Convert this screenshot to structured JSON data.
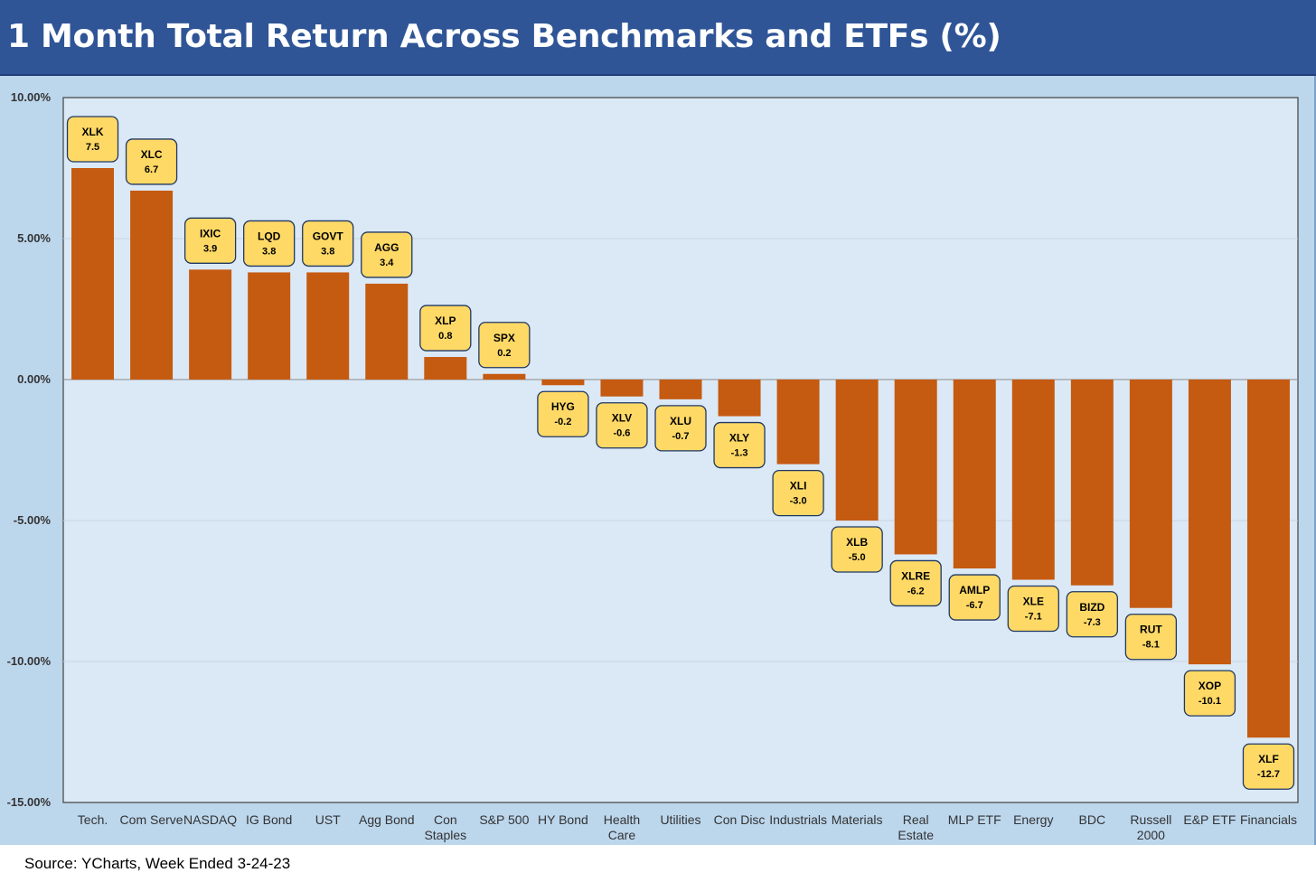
{
  "title": "1 Month Total Return Across Benchmarks and ETFs (%)",
  "source": "Source: YCharts, Week Ended 3-24-23",
  "colors": {
    "header_bg": "#2f5597",
    "panel_bg": "#bcd6ec",
    "plot_bg": "#dbe9f6",
    "bar": "#c55a11",
    "badge_fill": "#ffd966",
    "badge_border": "#1f3864",
    "grid": "#c8d4e0"
  },
  "chart_data": {
    "type": "bar",
    "title": "1 Month Total Return Across Benchmarks and ETFs (%)",
    "xlabel": "",
    "ylabel": "",
    "ylim": [
      -15,
      10
    ],
    "yticks": [
      10,
      5,
      0,
      -5,
      -10,
      -15
    ],
    "ytick_labels": [
      "10.00%",
      "5.00%",
      "0.00%",
      "-5.00%",
      "-10.00%",
      "-15.00%"
    ],
    "grid": true,
    "legend": "none",
    "categories": [
      "Tech.",
      "Com Serve",
      "NASDAQ",
      "IG Bond",
      "UST",
      "Agg Bond",
      "Con Staples",
      "S&P 500",
      "HY Bond",
      "Health Care",
      "Utilities",
      "Con Disc",
      "Industrials",
      "Materials",
      "Real Estate",
      "MLP ETF",
      "Energy",
      "BDC",
      "Russell 2000",
      "E&P ETF",
      "Financials"
    ],
    "category_lines": [
      [
        "Tech."
      ],
      [
        "Com Serve"
      ],
      [
        "NASDAQ"
      ],
      [
        "IG Bond"
      ],
      [
        "UST"
      ],
      [
        "Agg Bond"
      ],
      [
        "Con",
        "Staples"
      ],
      [
        "S&P 500"
      ],
      [
        "HY Bond"
      ],
      [
        "Health",
        "Care"
      ],
      [
        "Utilities"
      ],
      [
        "Con Disc"
      ],
      [
        "Industrials"
      ],
      [
        "Materials"
      ],
      [
        "Real",
        "Estate"
      ],
      [
        "MLP ETF"
      ],
      [
        "Energy"
      ],
      [
        "BDC"
      ],
      [
        "Russell",
        "2000"
      ],
      [
        "E&P ETF"
      ],
      [
        "Financials"
      ]
    ],
    "tickers": [
      "XLK",
      "XLC",
      "IXIC",
      "LQD",
      "GOVT",
      "AGG",
      "XLP",
      "SPX",
      "HYG",
      "XLV",
      "XLU",
      "XLY",
      "XLI",
      "XLB",
      "XLRE",
      "AMLP",
      "XLE",
      "BIZD",
      "RUT",
      "XOP",
      "XLF"
    ],
    "values": [
      7.5,
      6.7,
      3.9,
      3.8,
      3.8,
      3.4,
      0.8,
      0.2,
      -0.2,
      -0.6,
      -0.7,
      -1.3,
      -3.0,
      -5.0,
      -6.2,
      -6.7,
      -7.1,
      -7.3,
      -8.1,
      -10.1,
      -12.7
    ],
    "value_labels": [
      "7.5",
      "6.7",
      "3.9",
      "3.8",
      "3.8",
      "3.4",
      "0.8",
      "0.2",
      "-0.2",
      "-0.6",
      "-0.7",
      "-1.3",
      "-3.0",
      "-5.0",
      "-6.2",
      "-6.7",
      "-7.1",
      "-7.3",
      "-8.1",
      "-10.1",
      "-12.7"
    ]
  }
}
